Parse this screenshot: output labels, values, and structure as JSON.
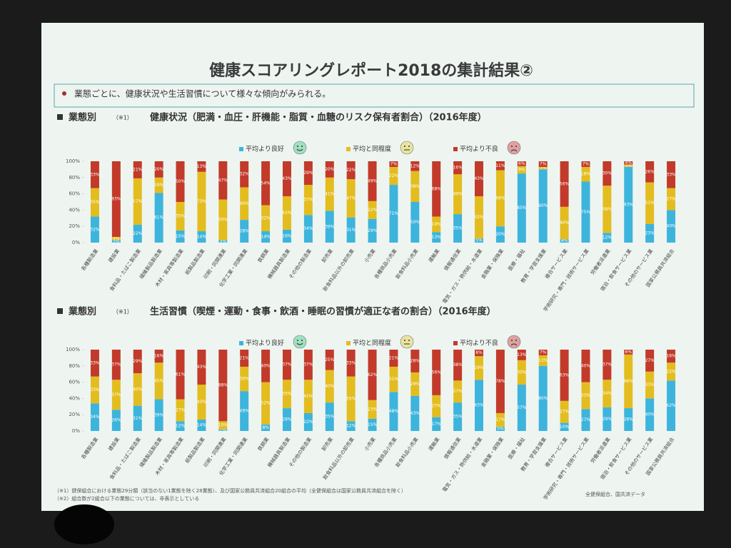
{
  "slide": {
    "title": "健康スコアリングレポート2018の集計結果②",
    "bullet": "業態ごとに、健康状況や生活習慣について様々な傾向がみられる。",
    "footnotes": [
      "（※1）健保組合における業態29分類（該当のない1業態を除く28業態）、及び国家公務員共済組合20組合の平均（全健保組合は国家公務員共済組合を除く）",
      "（※2）組合数が2組合以下の業態については、非表示としている"
    ],
    "source": "全健保組合、国共済データ"
  },
  "chart_data": [
    {
      "type": "bar",
      "stacked": true,
      "section_label": "業態別",
      "note_ref": "（※1）",
      "title": "健康状況（肥満・血圧・肝機能・脂質・血糖のリスク保有者割合）（2016年度）",
      "categories": [
        "各種製造業",
        "建設業",
        "食料品・たばこ製造業",
        "繊維製品製造業",
        "木材・家具等製造業",
        "紙製品製造業",
        "印刷・同関連業",
        "化学工業・同関連業",
        "鉄鋼業",
        "機械器具製造業",
        "その他の製造業",
        "卸売業",
        "飲食料品以外の卸売業",
        "小売業",
        "各種商品小売業",
        "飲食料品小売業",
        "運輸業",
        "情報通信業",
        "電気・ガス・熱供給・水道業",
        "金融業・保険業",
        "医療・福祉",
        "教育・学習支援業",
        "複合サービス業",
        "学術研究・専門・技術サービス業",
        "労働者派遣業",
        "宿泊・飲食サービス業",
        "その他のサービス業",
        "国家公務員共済組合"
      ],
      "series": [
        {
          "name": "平均より良好",
          "color": "#3db4dc",
          "values": [
            32,
            3,
            22,
            61,
            15,
            14,
            3,
            28,
            14,
            16,
            34,
            39,
            31,
            29,
            71,
            50,
            13,
            35,
            5,
            20,
            85,
            90,
            4,
            75,
            12,
            93,
            23,
            40
          ],
          "value_labels": [
            "32%",
            "3%",
            "22%",
            "61%",
            "15%",
            "14%",
            "3%",
            "28%",
            "14%",
            "16%",
            "34%",
            "39%",
            "31%",
            "29%",
            "71%",
            "50%",
            "13%",
            "35%",
            "5%",
            "20%",
            "85%",
            "90%",
            "4%",
            "75%",
            "12%",
            "93%",
            "23%",
            "40%"
          ]
        },
        {
          "name": "平均と同程度",
          "color": "#e3bd1f",
          "values": [
            35,
            4,
            57,
            19,
            35,
            73,
            50,
            40,
            32,
            41,
            37,
            41,
            47,
            22,
            22,
            38,
            19,
            49,
            52,
            69,
            9,
            3,
            40,
            18,
            58,
            3,
            51,
            27
          ],
          "value_labels": [
            "35%",
            "4%",
            "57%",
            "19%",
            "35%",
            "73%",
            "50%",
            "40%",
            "32%",
            "41%",
            "37%",
            "41%",
            "47%",
            "22%",
            "22%",
            "38%",
            "19%",
            "49%",
            "52%",
            "69%",
            "9%",
            "3%",
            "40%",
            "18%",
            "58%",
            "3%",
            "51%",
            "27%"
          ]
        },
        {
          "name": "平均より不良",
          "color": "#c23a2a",
          "values": [
            33,
            93,
            21,
            20,
            50,
            13,
            47,
            32,
            54,
            43,
            29,
            20,
            22,
            49,
            7,
            12,
            68,
            16,
            43,
            11,
            6,
            7,
            56,
            7,
            30,
            4,
            26,
            33
          ],
          "value_labels": [
            "33%",
            "93%",
            "21%",
            "20%",
            "50%",
            "13%",
            "47%",
            "32%",
            "54%",
            "43%",
            "29%",
            "20%",
            "22%",
            "49%",
            "7%",
            "12%",
            "68%",
            "16%",
            "43%",
            "11%",
            "6%",
            "7%",
            "56%",
            "7%",
            "30%",
            "4%",
            "26%",
            "33%"
          ]
        }
      ],
      "ylim": [
        0,
        100
      ],
      "yticks": [
        {
          "value": 0,
          "label": "0%"
        },
        {
          "value": 20,
          "label": "20%"
        },
        {
          "value": 40,
          "label": "40%"
        },
        {
          "value": 60,
          "label": "60%"
        },
        {
          "value": 80,
          "label": "80%"
        },
        {
          "value": 100,
          "label": "100%"
        }
      ]
    },
    {
      "type": "bar",
      "stacked": true,
      "section_label": "業態別",
      "note_ref": "（※1）",
      "title": "生活習慣（喫煙・運動・食事・飲酒・睡眠の習慣が適正な者の割合）（2016年度）",
      "categories": [
        "各種製造業",
        "建設業",
        "食料品・たばこ製造業",
        "繊維製品製造業",
        "木材・家具等製造業",
        "紙製品製造業",
        "印刷・同関連業",
        "化学工業・同関連業",
        "鉄鋼業",
        "機械器具製造業",
        "その他の製造業",
        "卸売業",
        "飲食料品以外の卸売業",
        "小売業",
        "各種商品小売業",
        "飲食料品小売業",
        "運輸業",
        "情報通信業",
        "電気・ガス・熱供給・水道業",
        "金融業・保険業",
        "医療・福祉",
        "教育・学習支援業",
        "複合サービス業",
        "学術研究・専門・技術サービス業",
        "労働者派遣業",
        "宿泊・飲食サービス業",
        "その他のサービス業",
        "国家公務員共済組合"
      ],
      "series": [
        {
          "name": "平均より良好",
          "color": "#3db4dc",
          "values": [
            34,
            26,
            31,
            39,
            12,
            14,
            2,
            49,
            8,
            28,
            22,
            35,
            12,
            15,
            48,
            43,
            17,
            35,
            63,
            5,
            57,
            80,
            10,
            27,
            29,
            28,
            40,
            62
          ],
          "value_labels": [
            "34%",
            "26%",
            "31%",
            "39%",
            "12%",
            "14%",
            "2%",
            "49%",
            "8%",
            "28%",
            "22%",
            "35%",
            "12%",
            "15%",
            "48%",
            "43%",
            "17%",
            "35%",
            "63%",
            "5%",
            "57%",
            "80%",
            "10%",
            "27%",
            "29%",
            "28%",
            "40%",
            "62%"
          ]
        },
        {
          "name": "平均と同程度",
          "color": "#e3bd1f",
          "values": [
            33,
            37,
            40,
            45,
            27,
            43,
            10,
            30,
            52,
            35,
            41,
            40,
            55,
            23,
            31,
            29,
            27,
            27,
            29,
            17,
            30,
            13,
            27,
            33,
            34,
            66,
            33,
            22
          ],
          "value_labels": [
            "33%",
            "37%",
            "40%",
            "45%",
            "27%",
            "43%",
            "10%",
            "30%",
            "52%",
            "35%",
            "41%",
            "40%",
            "55%",
            "23%",
            "31%",
            "29%",
            "27%",
            "27%",
            "29%",
            "17%",
            "30%",
            "13%",
            "27%",
            "33%",
            "34%",
            "66%",
            "33%",
            "22%"
          ]
        },
        {
          "name": "平均より不良",
          "color": "#c23a2a",
          "values": [
            33,
            37,
            29,
            16,
            61,
            43,
            88,
            21,
            40,
            37,
            37,
            25,
            33,
            62,
            21,
            28,
            56,
            38,
            8,
            78,
            13,
            7,
            63,
            40,
            37,
            6,
            27,
            16
          ],
          "value_labels": [
            "33%",
            "37%",
            "29%",
            "16%",
            "61%",
            "43%",
            "88%",
            "21%",
            "40%",
            "37%",
            "37%",
            "25%",
            "33%",
            "62%",
            "21%",
            "28%",
            "56%",
            "38%",
            "8%",
            "78%",
            "13%",
            "7%",
            "63%",
            "40%",
            "37%",
            "6%",
            "27%",
            "16%"
          ]
        }
      ],
      "ylim": [
        0,
        100
      ],
      "yticks": [
        {
          "value": 0,
          "label": "0%"
        },
        {
          "value": 20,
          "label": "20%"
        },
        {
          "value": 40,
          "label": "40%"
        },
        {
          "value": 60,
          "label": "60%"
        },
        {
          "value": 80,
          "label": "80%"
        },
        {
          "value": 100,
          "label": "100%"
        }
      ]
    }
  ]
}
